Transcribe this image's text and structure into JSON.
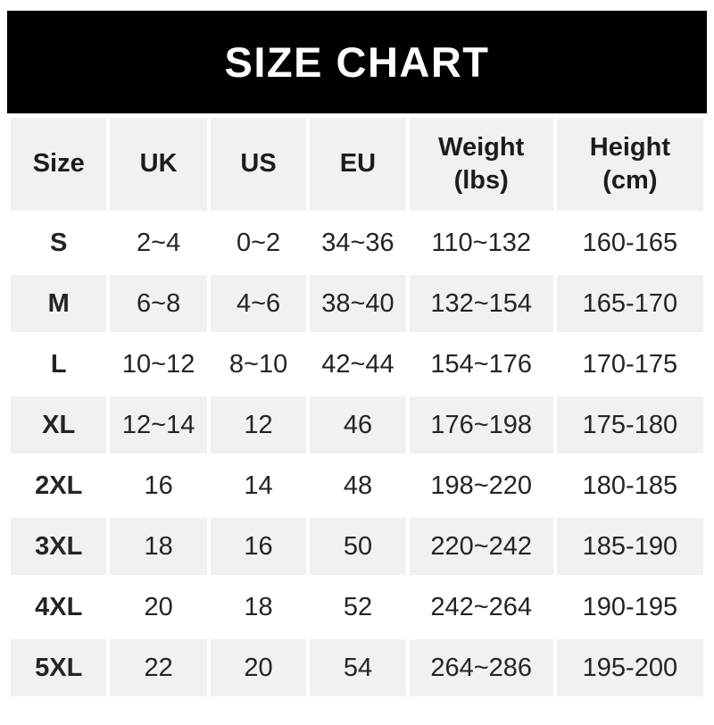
{
  "banner": {
    "title": "SIZE CHART"
  },
  "colors": {
    "banner_bg": "#000000",
    "banner_text": "#ffffff",
    "header_bg": "#f1f1f2",
    "row_alt_bg": "#f1f1f2",
    "row_bg": "#ffffff",
    "text": "#242428"
  },
  "chart_data": {
    "type": "table",
    "title": "SIZE CHART",
    "layout": {
      "striped_rows": true,
      "stripe_pattern": "odd rows white, even rows light gray",
      "header_lines": "Weight and Height headers wrap to two lines"
    },
    "columns": [
      {
        "label": "Size",
        "sub": ""
      },
      {
        "label": "UK",
        "sub": ""
      },
      {
        "label": "US",
        "sub": ""
      },
      {
        "label": "EU",
        "sub": ""
      },
      {
        "label": "Weight",
        "sub": "(lbs)"
      },
      {
        "label": "Height",
        "sub": "(cm)"
      }
    ],
    "rows": [
      [
        "S",
        "2~4",
        "0~2",
        "34~36",
        "110~132",
        "160-165"
      ],
      [
        "M",
        "6~8",
        "4~6",
        "38~40",
        "132~154",
        "165-170"
      ],
      [
        "L",
        "10~12",
        "8~10",
        "42~44",
        "154~176",
        "170-175"
      ],
      [
        "XL",
        "12~14",
        "12",
        "46",
        "176~198",
        "175-180"
      ],
      [
        "2XL",
        "16",
        "14",
        "48",
        "198~220",
        "180-185"
      ],
      [
        "3XL",
        "18",
        "16",
        "50",
        "220~242",
        "185-190"
      ],
      [
        "4XL",
        "20",
        "18",
        "52",
        "242~264",
        "190-195"
      ],
      [
        "5XL",
        "22",
        "20",
        "54",
        "264~286",
        "195-200"
      ]
    ]
  }
}
